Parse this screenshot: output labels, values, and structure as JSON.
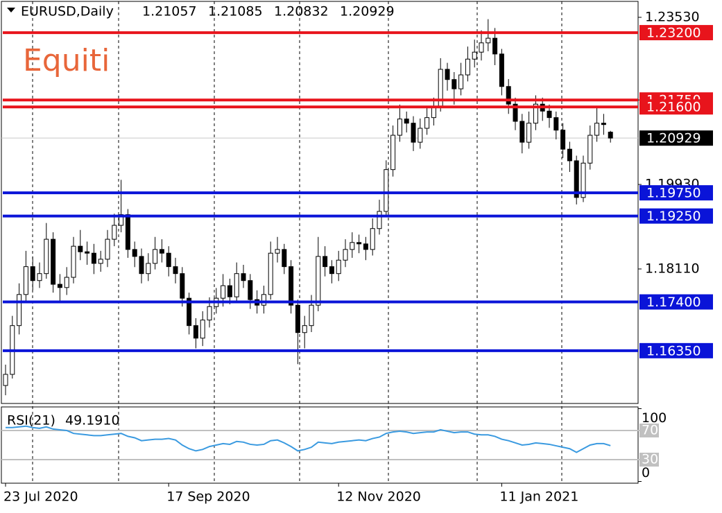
{
  "chart_data": {
    "type": "candlestick",
    "title": "EURUSD,Daily",
    "watermark": "Equiti",
    "categories": [
      "23 Jul 2020",
      null,
      null,
      null,
      null,
      null,
      null,
      null,
      null,
      null,
      null,
      null,
      null,
      null,
      null,
      null,
      null,
      null,
      null,
      null,
      null,
      null,
      null,
      null,
      "17 Sep 2020",
      null,
      null,
      null,
      null,
      null,
      null,
      null,
      null,
      null,
      null,
      null,
      null,
      null,
      null,
      null,
      null,
      null,
      null,
      null,
      null,
      null,
      null,
      null,
      null,
      "12 Nov 2020",
      null,
      null,
      null,
      null,
      null,
      null,
      null,
      null,
      null,
      null,
      null,
      null,
      null,
      null,
      null,
      null,
      null,
      null,
      null,
      null,
      null,
      null,
      null,
      "11 Jan 2021",
      null,
      null,
      null,
      null,
      null,
      null,
      null,
      null,
      null,
      null,
      null,
      null,
      null,
      null,
      null,
      null
    ],
    "open": [
      1.156,
      1.1584,
      1.1689,
      1.1756,
      1.1816,
      1.1786,
      1.1801,
      1.1875,
      1.1778,
      1.1771,
      1.1793,
      1.186,
      1.1848,
      1.1845,
      1.1823,
      1.1832,
      1.1875,
      1.1905,
      1.1928,
      1.1853,
      1.1838,
      1.1801,
      1.1823,
      1.1853,
      1.1845,
      1.1816,
      1.1801,
      1.1748,
      1.1689,
      1.1662,
      1.1701,
      1.173,
      1.1748,
      1.1775,
      1.1751,
      1.1801,
      1.1786,
      1.1745,
      1.1733,
      1.1756,
      1.1845,
      1.1853,
      1.1816,
      1.1733,
      1.1674,
      1.1689,
      1.1733,
      1.1838,
      1.1816,
      1.1801,
      1.183,
      1.1853,
      1.1868,
      1.1865,
      1.1853,
      1.1898,
      1.1935,
      1.2025,
      1.2099,
      1.2134,
      1.2125,
      1.2084,
      1.2114,
      1.2137,
      1.2159,
      1.2241,
      1.2219,
      1.2199,
      1.2229,
      1.2263,
      1.2278,
      1.2298,
      1.2308,
      1.2274,
      1.2204,
      1.2166,
      1.2129,
      1.2084,
      1.2125,
      1.2166,
      1.2151,
      1.2137,
      1.211,
      1.2069,
      1.2044,
      1.1965,
      1.2039,
      1.2099,
      1.2125,
      1.21057
    ],
    "high": [
      1.1605,
      1.171,
      1.178,
      1.185,
      1.1838,
      1.1825,
      1.191,
      1.189,
      1.18,
      1.1815,
      1.188,
      1.1895,
      1.187,
      1.1865,
      1.185,
      1.1895,
      1.193,
      1.2003,
      1.194,
      1.187,
      1.1855,
      1.1845,
      1.188,
      1.1875,
      1.186,
      1.1835,
      1.1815,
      1.176,
      1.1705,
      1.172,
      1.175,
      1.177,
      1.18,
      1.179,
      1.1825,
      1.182,
      1.18,
      1.1765,
      1.1775,
      1.187,
      1.188,
      1.1865,
      1.183,
      1.1745,
      1.171,
      1.1755,
      1.188,
      1.186,
      1.183,
      1.185,
      1.1875,
      1.189,
      1.1885,
      1.188,
      1.192,
      1.196,
      1.2045,
      1.212,
      1.2165,
      1.215,
      1.214,
      1.2135,
      1.216,
      1.218,
      1.2265,
      1.2255,
      1.2235,
      1.2255,
      1.229,
      1.2305,
      1.2325,
      1.2349,
      1.233,
      1.2285,
      1.222,
      1.218,
      1.2145,
      1.215,
      1.2185,
      1.218,
      1.2165,
      1.215,
      1.2125,
      1.2085,
      1.2055,
      1.2055,
      1.212,
      1.216,
      1.2145,
      1.21085
    ],
    "low": [
      1.1539,
      1.1575,
      1.167,
      1.174,
      1.1765,
      1.177,
      1.179,
      1.176,
      1.174,
      1.1755,
      1.178,
      1.183,
      1.182,
      1.18,
      1.1805,
      1.1815,
      1.186,
      1.189,
      1.1835,
      1.1815,
      1.178,
      1.1785,
      1.181,
      1.1825,
      1.1795,
      1.178,
      1.173,
      1.167,
      1.164,
      1.1645,
      1.1685,
      1.1715,
      1.173,
      1.1735,
      1.174,
      1.177,
      1.1725,
      1.1715,
      1.1715,
      1.1745,
      1.1825,
      1.18,
      1.1715,
      1.1606,
      1.164,
      1.1675,
      1.172,
      1.1795,
      1.178,
      1.1785,
      1.1815,
      1.1835,
      1.1845,
      1.183,
      1.184,
      1.1885,
      1.1925,
      1.201,
      1.2085,
      1.2105,
      1.2065,
      1.207,
      1.21,
      1.212,
      1.215,
      1.2195,
      1.2165,
      1.2185,
      1.2215,
      1.2245,
      1.226,
      1.228,
      1.225,
      1.2185,
      1.2145,
      1.211,
      1.206,
      1.207,
      1.211,
      1.213,
      1.2115,
      1.209,
      1.205,
      1.202,
      1.195,
      1.1955,
      1.2025,
      1.2085,
      1.21,
      1.20832
    ],
    "close": [
      1.1584,
      1.1689,
      1.1756,
      1.1816,
      1.1786,
      1.1801,
      1.1875,
      1.1778,
      1.1771,
      1.1793,
      1.186,
      1.1848,
      1.1845,
      1.1823,
      1.1832,
      1.1875,
      1.1905,
      1.1928,
      1.1853,
      1.1838,
      1.1801,
      1.1823,
      1.1853,
      1.1845,
      1.1816,
      1.1801,
      1.1748,
      1.1689,
      1.1662,
      1.1701,
      1.173,
      1.1748,
      1.1775,
      1.1751,
      1.1801,
      1.1786,
      1.1745,
      1.1733,
      1.1756,
      1.1845,
      1.1853,
      1.1816,
      1.1733,
      1.1674,
      1.1689,
      1.1733,
      1.1838,
      1.1816,
      1.1801,
      1.183,
      1.1853,
      1.1868,
      1.1865,
      1.1853,
      1.1898,
      1.1935,
      1.2025,
      1.2099,
      1.2134,
      1.2125,
      1.2084,
      1.2114,
      1.2137,
      1.2159,
      1.2241,
      1.2219,
      1.2199,
      1.2229,
      1.2263,
      1.2278,
      1.2298,
      1.2308,
      1.2274,
      1.2204,
      1.2166,
      1.2129,
      1.2084,
      1.2125,
      1.2166,
      1.2151,
      1.2137,
      1.211,
      1.2069,
      1.2044,
      1.1965,
      1.2039,
      1.2099,
      1.2125,
      1.2122,
      1.20929
    ],
    "ylim": [
      1.15213,
      1.23903
    ],
    "yticks": [
      {
        "value": 1.2353,
        "label": "1.23530"
      },
      {
        "value": 1.2175,
        "label": "1.21750"
      },
      {
        "value": 1.1993,
        "label": "1.19930"
      },
      {
        "value": 1.1811,
        "label": "1.18110"
      }
    ],
    "levels": [
      {
        "value": 1.232,
        "label": "1.23200",
        "color": "#e8141c"
      },
      {
        "value": 1.2175,
        "label": "1.21750",
        "color": "#e8141c"
      },
      {
        "value": 1.216,
        "label": "1.21600",
        "color": "#e8141c"
      },
      {
        "value": 1.1975,
        "label": "1.19750",
        "color": "#0a14d8"
      },
      {
        "value": 1.1925,
        "label": "1.19250",
        "color": "#0a14d8"
      },
      {
        "value": 1.174,
        "label": "1.17400",
        "color": "#0a14d8"
      },
      {
        "value": 1.1635,
        "label": "1.16350",
        "color": "#0a14d8"
      }
    ],
    "rsi": {
      "name": "RSI(21)",
      "color": "#3a9ae0",
      "values": [
        74,
        74,
        75,
        76,
        74,
        73,
        75,
        72,
        71,
        70,
        66,
        65,
        64,
        63,
        63,
        64,
        65,
        66,
        62,
        60,
        56,
        57,
        58,
        58,
        59,
        57,
        50,
        45,
        42,
        44,
        48,
        50,
        52,
        51,
        55,
        54,
        51,
        50,
        51,
        56,
        57,
        53,
        48,
        42,
        44,
        47,
        54,
        53,
        52,
        54,
        55,
        56,
        57,
        56,
        59,
        61,
        66,
        68,
        69,
        68,
        66,
        67,
        68,
        68,
        71,
        69,
        67,
        68,
        68,
        65,
        64,
        64,
        62,
        58,
        56,
        53,
        50,
        51,
        53,
        52,
        51,
        49,
        47,
        45,
        40,
        45,
        50,
        52,
        52,
        49.191
      ],
      "value_labels": [
        null,
        null,
        null,
        null,
        null,
        null,
        null,
        null,
        null,
        null,
        null,
        null,
        null,
        null,
        null,
        null,
        null,
        null,
        null,
        null,
        null,
        null,
        null,
        null,
        null,
        null,
        null,
        null,
        null,
        null,
        null,
        null,
        null,
        null,
        null,
        null,
        null,
        null,
        null,
        null,
        null,
        null,
        null,
        null,
        null,
        null,
        null,
        null,
        null,
        null,
        null,
        null,
        null,
        null,
        null,
        null,
        null,
        null,
        null,
        null,
        null,
        null,
        null,
        null,
        null,
        null,
        null,
        null,
        null,
        null,
        null,
        null,
        null,
        null,
        null,
        null,
        null,
        null,
        null,
        null,
        null,
        null,
        null,
        null,
        null,
        null,
        null,
        null,
        null,
        "49.1910"
      ],
      "ylim": [
        0,
        100
      ],
      "yticks": [
        100,
        70,
        30,
        0
      ]
    }
  }
}
